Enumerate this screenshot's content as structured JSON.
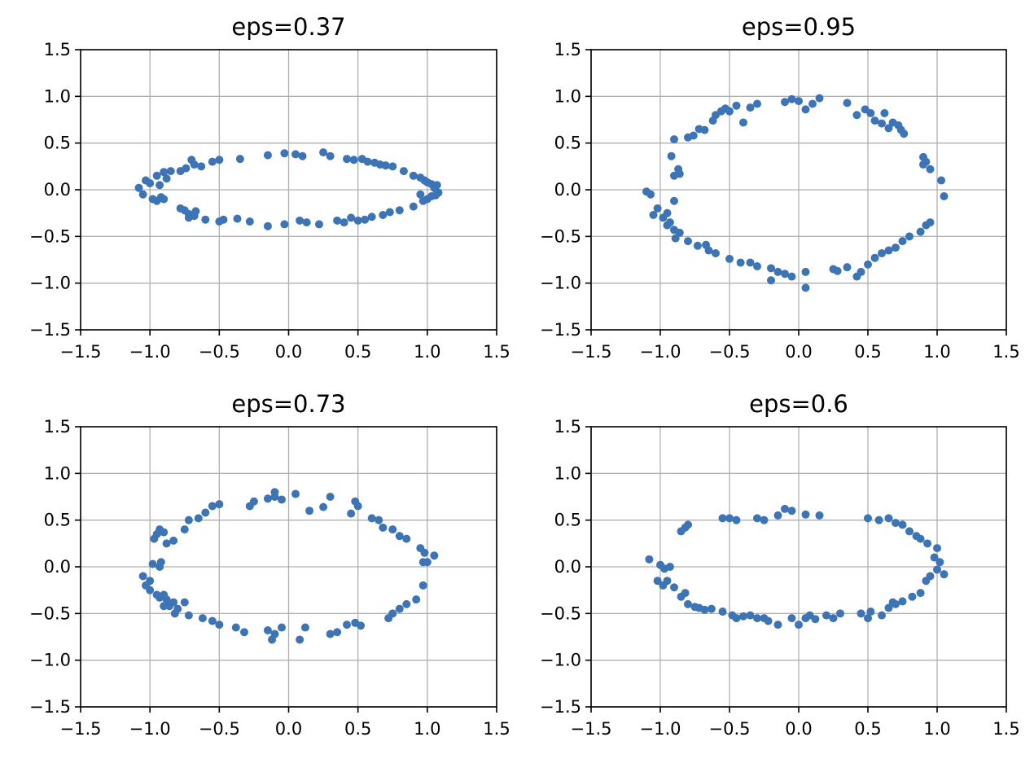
{
  "chart_data": [
    {
      "type": "scatter",
      "title": "eps=0.37",
      "xlim": [
        -1.5,
        1.5
      ],
      "ylim": [
        -1.5,
        1.5
      ],
      "xticks": [
        "−1.5",
        "−1.0",
        "−0.5",
        "0.0",
        "0.5",
        "1.0",
        "1.5"
      ],
      "yticks": [
        "1.5",
        "1.0",
        "0.5",
        "0.0",
        "−0.5",
        "−1.0",
        "−1.5"
      ],
      "grid": true,
      "color": "#3d74b5",
      "points": [
        [
          -1.08,
          0.02
        ],
        [
          -1.05,
          -0.05
        ],
        [
          -1.03,
          0.1
        ],
        [
          -1.0,
          0.07
        ],
        [
          -0.98,
          -0.1
        ],
        [
          -0.95,
          0.15
        ],
        [
          -0.93,
          0.05
        ],
        [
          -0.92,
          -0.08
        ],
        [
          -0.9,
          0.19
        ],
        [
          -0.88,
          0.12
        ],
        [
          -0.95,
          -0.12
        ],
        [
          -0.9,
          -0.1
        ],
        [
          -0.85,
          0.2
        ],
        [
          -0.78,
          0.2
        ],
        [
          -0.74,
          0.23
        ],
        [
          -0.7,
          0.32
        ],
        [
          -0.68,
          0.27
        ],
        [
          -0.63,
          0.25
        ],
        [
          -0.55,
          0.3
        ],
        [
          -0.5,
          0.32
        ],
        [
          -0.35,
          0.33
        ],
        [
          -0.15,
          0.37
        ],
        [
          -0.03,
          0.39
        ],
        [
          0.05,
          0.38
        ],
        [
          0.1,
          0.36
        ],
        [
          0.25,
          0.4
        ],
        [
          0.3,
          0.36
        ],
        [
          0.42,
          0.33
        ],
        [
          0.47,
          0.32
        ],
        [
          0.53,
          0.33
        ],
        [
          0.57,
          0.3
        ],
        [
          0.62,
          0.29
        ],
        [
          0.66,
          0.27
        ],
        [
          0.7,
          0.26
        ],
        [
          0.75,
          0.25
        ],
        [
          0.83,
          0.2
        ],
        [
          0.9,
          0.15
        ],
        [
          0.95,
          0.13
        ],
        [
          0.98,
          0.1
        ],
        [
          1.0,
          0.08
        ],
        [
          1.03,
          0.06
        ],
        [
          1.05,
          0.02
        ],
        [
          1.07,
          0.05
        ],
        [
          1.08,
          -0.03
        ],
        [
          1.06,
          -0.06
        ],
        [
          1.03,
          -0.07
        ],
        [
          1.0,
          -0.1
        ],
        [
          0.97,
          -0.12
        ],
        [
          0.95,
          -0.05
        ],
        [
          0.9,
          -0.18
        ],
        [
          0.8,
          -0.22
        ],
        [
          0.73,
          -0.24
        ],
        [
          0.68,
          -0.27
        ],
        [
          0.6,
          -0.29
        ],
        [
          0.55,
          -0.32
        ],
        [
          0.5,
          -0.33
        ],
        [
          0.45,
          -0.3
        ],
        [
          0.4,
          -0.35
        ],
        [
          0.35,
          -0.33
        ],
        [
          0.22,
          -0.37
        ],
        [
          0.13,
          -0.35
        ],
        [
          0.08,
          -0.33
        ],
        [
          -0.03,
          -0.37
        ],
        [
          -0.15,
          -0.39
        ],
        [
          -0.28,
          -0.34
        ],
        [
          -0.37,
          -0.31
        ],
        [
          -0.47,
          -0.32
        ],
        [
          -0.5,
          -0.34
        ],
        [
          -0.6,
          -0.32
        ],
        [
          -0.68,
          -0.28
        ],
        [
          -0.72,
          -0.26
        ],
        [
          -0.75,
          -0.22
        ],
        [
          -0.78,
          -0.2
        ],
        [
          -0.72,
          -0.3
        ],
        [
          -0.67,
          -0.23
        ]
      ]
    },
    {
      "type": "scatter",
      "title": "eps=0.95",
      "xlim": [
        -1.5,
        1.5
      ],
      "ylim": [
        -1.5,
        1.5
      ],
      "xticks": [
        "−1.5",
        "−1.0",
        "−0.5",
        "0.0",
        "0.5",
        "1.0",
        "1.5"
      ],
      "yticks": [
        "1.5",
        "1.0",
        "0.5",
        "0.0",
        "−0.5",
        "−1.0",
        "−1.5"
      ],
      "grid": true,
      "color": "#3d74b5",
      "points": [
        [
          -1.1,
          -0.02
        ],
        [
          -1.07,
          -0.05
        ],
        [
          -1.05,
          -0.27
        ],
        [
          -1.02,
          -0.2
        ],
        [
          -0.98,
          -0.3
        ],
        [
          -0.95,
          -0.25
        ],
        [
          -0.93,
          -0.35
        ],
        [
          -0.9,
          -0.43
        ],
        [
          -0.89,
          -0.52
        ],
        [
          -0.9,
          -0.12
        ],
        [
          -0.92,
          0.36
        ],
        [
          -0.9,
          0.54
        ],
        [
          -0.9,
          0.15
        ],
        [
          -0.87,
          0.22
        ],
        [
          -0.86,
          0.17
        ],
        [
          -0.8,
          0.56
        ],
        [
          -0.76,
          0.58
        ],
        [
          -0.72,
          0.65
        ],
        [
          -0.68,
          0.64
        ],
        [
          -0.62,
          0.74
        ],
        [
          -0.6,
          0.8
        ],
        [
          -0.56,
          0.84
        ],
        [
          -0.53,
          0.87
        ],
        [
          -0.5,
          0.84
        ],
        [
          -0.45,
          0.9
        ],
        [
          -0.4,
          0.72
        ],
        [
          -0.35,
          0.88
        ],
        [
          -0.3,
          0.92
        ],
        [
          -0.1,
          0.94
        ],
        [
          -0.05,
          0.97
        ],
        [
          0.0,
          0.95
        ],
        [
          0.05,
          0.86
        ],
        [
          0.1,
          0.92
        ],
        [
          0.15,
          0.98
        ],
        [
          0.35,
          0.93
        ],
        [
          0.42,
          0.8
        ],
        [
          0.48,
          0.86
        ],
        [
          0.52,
          0.82
        ],
        [
          0.55,
          0.74
        ],
        [
          0.6,
          0.71
        ],
        [
          0.62,
          0.82
        ],
        [
          0.65,
          0.66
        ],
        [
          0.68,
          0.72
        ],
        [
          0.72,
          0.69
        ],
        [
          0.74,
          0.64
        ],
        [
          0.76,
          0.6
        ],
        [
          0.9,
          0.35
        ],
        [
          0.92,
          0.3
        ],
        [
          0.95,
          0.22
        ],
        [
          0.9,
          0.27
        ],
        [
          1.03,
          0.1
        ],
        [
          1.05,
          -0.07
        ],
        [
          0.95,
          -0.35
        ],
        [
          0.92,
          -0.38
        ],
        [
          0.88,
          -0.45
        ],
        [
          0.8,
          -0.5
        ],
        [
          0.75,
          -0.55
        ],
        [
          0.7,
          -0.62
        ],
        [
          0.65,
          -0.65
        ],
        [
          0.6,
          -0.68
        ],
        [
          0.55,
          -0.73
        ],
        [
          0.5,
          -0.8
        ],
        [
          0.45,
          -0.88
        ],
        [
          0.42,
          -0.93
        ],
        [
          0.35,
          -0.83
        ],
        [
          0.28,
          -0.87
        ],
        [
          0.25,
          -0.85
        ],
        [
          0.05,
          -0.88
        ],
        [
          0.05,
          -1.05
        ],
        [
          -0.05,
          -0.93
        ],
        [
          -0.1,
          -0.9
        ],
        [
          -0.15,
          -0.88
        ],
        [
          -0.2,
          -0.84
        ],
        [
          -0.2,
          -0.97
        ],
        [
          -0.3,
          -0.82
        ],
        [
          -0.35,
          -0.78
        ],
        [
          -0.42,
          -0.78
        ],
        [
          -0.5,
          -0.74
        ],
        [
          -0.6,
          -0.68
        ],
        [
          -0.65,
          -0.65
        ],
        [
          -0.67,
          -0.59
        ],
        [
          -0.73,
          -0.6
        ],
        [
          -0.8,
          -0.55
        ],
        [
          -0.86,
          -0.46
        ],
        [
          -0.95,
          -0.38
        ]
      ]
    },
    {
      "type": "scatter",
      "title": "eps=0.73",
      "xlim": [
        -1.5,
        1.5
      ],
      "ylim": [
        -1.5,
        1.5
      ],
      "xticks": [
        "−1.5",
        "−1.0",
        "−0.5",
        "0.0",
        "0.5",
        "1.0",
        "1.5"
      ],
      "yticks": [
        "1.5",
        "1.0",
        "0.5",
        "0.0",
        "−0.5",
        "−1.0",
        "−1.5"
      ],
      "grid": true,
      "color": "#3d74b5",
      "points": [
        [
          -1.03,
          -0.2
        ],
        [
          -1.05,
          -0.1
        ],
        [
          -1.0,
          -0.25
        ],
        [
          -0.98,
          0.03
        ],
        [
          -0.97,
          0.3
        ],
        [
          -0.95,
          0.35
        ],
        [
          -0.93,
          0.4
        ],
        [
          -0.92,
          0.05
        ],
        [
          -0.9,
          0.37
        ],
        [
          -0.93,
          0.0
        ],
        [
          -0.9,
          -0.3
        ],
        [
          -0.88,
          -0.35
        ],
        [
          -0.86,
          -0.42
        ],
        [
          -0.83,
          -0.38
        ],
        [
          -0.8,
          -0.45
        ],
        [
          -0.75,
          -0.38
        ],
        [
          -0.88,
          0.25
        ],
        [
          -0.83,
          0.28
        ],
        [
          -0.75,
          0.4
        ],
        [
          -0.72,
          0.5
        ],
        [
          -0.65,
          0.52
        ],
        [
          -0.6,
          0.58
        ],
        [
          -0.55,
          0.65
        ],
        [
          -0.5,
          0.67
        ],
        [
          -0.28,
          0.65
        ],
        [
          -0.25,
          0.7
        ],
        [
          -0.15,
          0.73
        ],
        [
          -0.1,
          0.75
        ],
        [
          -0.05,
          0.72
        ],
        [
          -0.1,
          0.8
        ],
        [
          0.05,
          0.78
        ],
        [
          0.15,
          0.6
        ],
        [
          0.25,
          0.64
        ],
        [
          0.3,
          0.75
        ],
        [
          0.45,
          0.57
        ],
        [
          0.48,
          0.7
        ],
        [
          0.5,
          0.65
        ],
        [
          0.6,
          0.52
        ],
        [
          0.65,
          0.5
        ],
        [
          0.68,
          0.42
        ],
        [
          0.75,
          0.4
        ],
        [
          0.8,
          0.33
        ],
        [
          0.85,
          0.3
        ],
        [
          0.95,
          0.2
        ],
        [
          0.97,
          0.05
        ],
        [
          0.98,
          0.15
        ],
        [
          1.0,
          0.05
        ],
        [
          1.05,
          0.12
        ],
        [
          0.97,
          -0.2
        ],
        [
          0.92,
          -0.35
        ],
        [
          0.85,
          -0.4
        ],
        [
          0.8,
          -0.45
        ],
        [
          0.75,
          -0.5
        ],
        [
          0.72,
          -0.55
        ],
        [
          0.52,
          -0.63
        ],
        [
          0.48,
          -0.6
        ],
        [
          0.42,
          -0.62
        ],
        [
          0.35,
          -0.7
        ],
        [
          0.3,
          -0.72
        ],
        [
          0.12,
          -0.65
        ],
        [
          0.08,
          -0.78
        ],
        [
          -0.05,
          -0.65
        ],
        [
          -0.1,
          -0.72
        ],
        [
          -0.12,
          -0.78
        ],
        [
          -0.15,
          -0.68
        ],
        [
          -0.32,
          -0.7
        ],
        [
          -0.38,
          -0.65
        ],
        [
          -0.5,
          -0.62
        ],
        [
          -0.55,
          -0.58
        ],
        [
          -0.62,
          -0.55
        ],
        [
          -0.72,
          -0.52
        ],
        [
          -0.82,
          -0.5
        ],
        [
          -0.9,
          -0.42
        ],
        [
          -0.93,
          -0.33
        ],
        [
          -0.95,
          -0.3
        ],
        [
          -1.0,
          -0.15
        ]
      ]
    },
    {
      "type": "scatter",
      "title": "eps=0.6",
      "xlim": [
        -1.5,
        1.5
      ],
      "ylim": [
        -1.5,
        1.5
      ],
      "xticks": [
        "−1.5",
        "−1.0",
        "−0.5",
        "0.0",
        "0.5",
        "1.0",
        "1.5"
      ],
      "yticks": [
        "1.5",
        "1.0",
        "0.5",
        "0.0",
        "−0.5",
        "−1.0",
        "−1.5"
      ],
      "grid": true,
      "color": "#3d74b5",
      "points": [
        [
          -1.08,
          0.08
        ],
        [
          -1.0,
          0.02
        ],
        [
          -0.97,
          -0.02
        ],
        [
          -0.93,
          0.0
        ],
        [
          -1.02,
          -0.15
        ],
        [
          -0.98,
          -0.2
        ],
        [
          -0.95,
          -0.15
        ],
        [
          -0.9,
          -0.22
        ],
        [
          -0.85,
          -0.32
        ],
        [
          -0.82,
          -0.28
        ],
        [
          -0.8,
          -0.4
        ],
        [
          -0.75,
          -0.43
        ],
        [
          -0.72,
          -0.44
        ],
        [
          -0.68,
          -0.46
        ],
        [
          -0.63,
          -0.45
        ],
        [
          -0.55,
          -0.48
        ],
        [
          -0.48,
          -0.52
        ],
        [
          -0.45,
          -0.55
        ],
        [
          -0.4,
          -0.53
        ],
        [
          -0.35,
          -0.52
        ],
        [
          -0.3,
          -0.55
        ],
        [
          -0.25,
          -0.55
        ],
        [
          -0.22,
          -0.58
        ],
        [
          -0.15,
          -0.62
        ],
        [
          -0.05,
          -0.55
        ],
        [
          0.0,
          -0.62
        ],
        [
          0.05,
          -0.55
        ],
        [
          0.08,
          -0.52
        ],
        [
          0.12,
          -0.56
        ],
        [
          0.2,
          -0.52
        ],
        [
          0.25,
          -0.55
        ],
        [
          0.3,
          -0.5
        ],
        [
          0.45,
          -0.5
        ],
        [
          0.5,
          -0.55
        ],
        [
          0.52,
          -0.48
        ],
        [
          0.6,
          -0.52
        ],
        [
          0.65,
          -0.44
        ],
        [
          0.68,
          -0.38
        ],
        [
          0.7,
          -0.4
        ],
        [
          0.75,
          -0.37
        ],
        [
          0.82,
          -0.32
        ],
        [
          0.88,
          -0.28
        ],
        [
          0.92,
          -0.15
        ],
        [
          0.95,
          -0.1
        ],
        [
          1.0,
          -0.03
        ],
        [
          1.05,
          -0.08
        ],
        [
          1.02,
          0.05
        ],
        [
          0.98,
          0.1
        ],
        [
          1.0,
          0.2
        ],
        [
          0.93,
          0.25
        ],
        [
          0.88,
          0.3
        ],
        [
          0.85,
          0.33
        ],
        [
          0.8,
          0.38
        ],
        [
          0.75,
          0.45
        ],
        [
          0.7,
          0.47
        ],
        [
          0.65,
          0.52
        ],
        [
          0.58,
          0.5
        ],
        [
          0.5,
          0.52
        ],
        [
          0.15,
          0.55
        ],
        [
          0.05,
          0.56
        ],
        [
          -0.05,
          0.6
        ],
        [
          -0.1,
          0.62
        ],
        [
          -0.15,
          0.55
        ],
        [
          -0.25,
          0.5
        ],
        [
          -0.3,
          0.52
        ],
        [
          -0.45,
          0.5
        ],
        [
          -0.5,
          0.52
        ],
        [
          -0.55,
          0.52
        ],
        [
          -0.8,
          0.45
        ],
        [
          -0.82,
          0.42
        ],
        [
          -0.85,
          0.38
        ]
      ]
    }
  ]
}
